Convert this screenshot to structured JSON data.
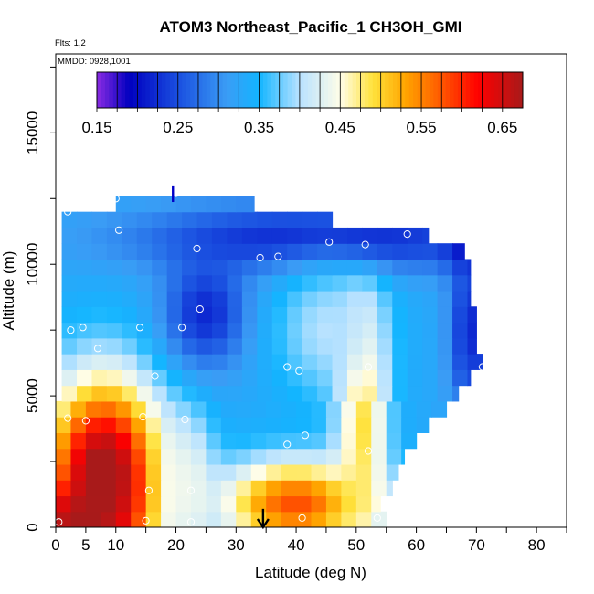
{
  "chart_data": {
    "type": "heatmap",
    "title": "ATOM3 Northeast_Pacific_1 CH3OH_GMI",
    "annotations": [
      "Flts: 1,2",
      "MMDD: 0928,1001"
    ],
    "xlabel": "Latitude (deg N)",
    "ylabel": "Altitude (m)",
    "xlim": [
      0,
      85
    ],
    "ylim": [
      0,
      18000
    ],
    "x_ticks": [
      0,
      5,
      10,
      20,
      30,
      40,
      50,
      60,
      70,
      80
    ],
    "x_tick_labels": [
      "0",
      "5",
      "10",
      "20",
      "30",
      "40",
      "50",
      "60",
      "70",
      "80"
    ],
    "y_ticks": [
      0,
      5000,
      10000,
      15000
    ],
    "y_tick_labels": [
      "0",
      "5000",
      "10000",
      "15000"
    ],
    "colorbar": {
      "min": 0.15,
      "max": 0.675,
      "labels": [
        "0.15",
        "0.25",
        "0.35",
        "0.45",
        "0.55",
        "0.65"
      ],
      "label_values": [
        0.15,
        0.25,
        0.35,
        0.45,
        0.55,
        0.65
      ],
      "stops": [
        {
          "v": 0.15,
          "c": "#8a2be2"
        },
        {
          "v": 0.19,
          "c": "#0000c0"
        },
        {
          "v": 0.25,
          "c": "#1a4fe0"
        },
        {
          "v": 0.31,
          "c": "#3a9cf5"
        },
        {
          "v": 0.35,
          "c": "#13b5ff"
        },
        {
          "v": 0.4,
          "c": "#b8e2ff"
        },
        {
          "v": 0.45,
          "c": "#fffde8"
        },
        {
          "v": 0.49,
          "c": "#ffe23c"
        },
        {
          "v": 0.53,
          "c": "#ffa500"
        },
        {
          "v": 0.57,
          "c": "#ff6000"
        },
        {
          "v": 0.62,
          "c": "#ff0000"
        },
        {
          "v": 0.675,
          "c": "#a81a1a"
        }
      ]
    },
    "grid_step": {
      "dx": 2.5,
      "dy": 600
    },
    "data_range": {
      "xmin": 0,
      "xmax": 72
    },
    "row_extents": [
      {
        "ymin": 0,
        "ymax": 600,
        "xmin": 0,
        "xmax": 55
      },
      {
        "ymin": 600,
        "ymax": 1200,
        "xmin": 0,
        "xmax": 54
      },
      {
        "ymin": 1200,
        "ymax": 1800,
        "xmin": 0,
        "xmax": 56
      },
      {
        "ymin": 1800,
        "ymax": 2400,
        "xmin": 0,
        "xmax": 57
      },
      {
        "ymin": 2400,
        "ymax": 3000,
        "xmin": 0,
        "xmax": 58
      },
      {
        "ymin": 3000,
        "ymax": 3600,
        "xmin": 0,
        "xmax": 60
      },
      {
        "ymin": 3600,
        "ymax": 4200,
        "xmin": 0,
        "xmax": 62
      },
      {
        "ymin": 4200,
        "ymax": 4800,
        "xmin": 0,
        "xmax": 65
      },
      {
        "ymin": 4800,
        "ymax": 5400,
        "xmin": 1,
        "xmax": 67
      },
      {
        "ymin": 5400,
        "ymax": 6000,
        "xmin": 1,
        "xmax": 69
      },
      {
        "ymin": 6000,
        "ymax": 6600,
        "xmin": 1,
        "xmax": 71
      },
      {
        "ymin": 6600,
        "ymax": 7200,
        "xmin": 1,
        "xmax": 70
      },
      {
        "ymin": 7200,
        "ymax": 7800,
        "xmin": 1,
        "xmax": 70
      },
      {
        "ymin": 7800,
        "ymax": 8400,
        "xmin": 1,
        "xmax": 70
      },
      {
        "ymin": 8400,
        "ymax": 9000,
        "xmin": 1,
        "xmax": 69
      },
      {
        "ymin": 9000,
        "ymax": 9600,
        "xmin": 1,
        "xmax": 69
      },
      {
        "ymin": 9600,
        "ymax": 10200,
        "xmin": 1,
        "xmax": 69
      },
      {
        "ymin": 10200,
        "ymax": 10800,
        "xmin": 1,
        "xmax": 68
      },
      {
        "ymin": 10800,
        "ymax": 11400,
        "xmin": 1,
        "xmax": 62
      },
      {
        "ymin": 11400,
        "ymax": 12000,
        "xmin": 1,
        "xmax": 46
      },
      {
        "ymin": 12000,
        "ymax": 12600,
        "xmin": 10,
        "xmax": 33
      }
    ],
    "field_features": [
      {
        "name": "background",
        "value": 0.33
      },
      {
        "name": "red_low_south",
        "value": 0.7,
        "cx": 8,
        "cy": 2000,
        "sx": 7,
        "sy": 2600
      },
      {
        "name": "red_surface",
        "value": 0.68,
        "cx": 4,
        "cy": 300,
        "sx": 6,
        "sy": 900
      },
      {
        "name": "orange_low_mid",
        "value": 0.58,
        "cx": 40,
        "cy": 900,
        "sx": 9,
        "sy": 1200
      },
      {
        "name": "yellow_column",
        "value": 0.5,
        "cx": 51,
        "cy": 4500,
        "sx": 3,
        "sy": 3500
      },
      {
        "name": "white_transition",
        "value": 0.44,
        "cx": 22,
        "cy": 1500,
        "sx": 3,
        "sy": 2000
      },
      {
        "name": "blue_upper_band",
        "value": 0.21,
        "cx": 45,
        "cy": 11000,
        "sx": 22,
        "sy": 900
      },
      {
        "name": "blue_diag",
        "value": 0.22,
        "cx": 25,
        "cy": 8200,
        "sx": 5,
        "sy": 1500
      },
      {
        "name": "violet_tip",
        "value": 0.16,
        "cx": 70,
        "cy": 10700,
        "sx": 3,
        "sy": 600
      },
      {
        "name": "blue_right_edge",
        "value": 0.22,
        "cx": 69,
        "cy": 7500,
        "sx": 2.5,
        "sy": 2500
      },
      {
        "name": "white_mid",
        "value": 0.4,
        "cx": 45,
        "cy": 7500,
        "sx": 6,
        "sy": 1800
      }
    ],
    "sample_points": [
      {
        "x": 10,
        "y": 12500
      },
      {
        "x": 20,
        "y": 12700
      },
      {
        "x": 2,
        "y": 12000
      },
      {
        "x": 10.5,
        "y": 11300
      },
      {
        "x": 23.5,
        "y": 10600
      },
      {
        "x": 34,
        "y": 10250
      },
      {
        "x": 37,
        "y": 10300
      },
      {
        "x": 45.5,
        "y": 10850
      },
      {
        "x": 51.5,
        "y": 10750
      },
      {
        "x": 58.5,
        "y": 11150
      },
      {
        "x": 69,
        "y": 10900
      },
      {
        "x": 24,
        "y": 8300
      },
      {
        "x": 4.5,
        "y": 7600
      },
      {
        "x": 2.5,
        "y": 7500
      },
      {
        "x": 14,
        "y": 7600
      },
      {
        "x": 21,
        "y": 7600
      },
      {
        "x": 7,
        "y": 6800
      },
      {
        "x": 38.5,
        "y": 6100
      },
      {
        "x": 40.5,
        "y": 5950
      },
      {
        "x": 52,
        "y": 6100
      },
      {
        "x": 71,
        "y": 6100
      },
      {
        "x": 16.5,
        "y": 5750
      },
      {
        "x": 2,
        "y": 4150
      },
      {
        "x": 5,
        "y": 4050
      },
      {
        "x": 14.5,
        "y": 4200
      },
      {
        "x": 21.5,
        "y": 4100
      },
      {
        "x": 41.5,
        "y": 3500
      },
      {
        "x": 38.5,
        "y": 3150
      },
      {
        "x": 52,
        "y": 2900
      },
      {
        "x": 15.5,
        "y": 1400
      },
      {
        "x": 22.5,
        "y": 1400
      },
      {
        "x": 15,
        "y": 250
      },
      {
        "x": 22.5,
        "y": 200
      },
      {
        "x": 41,
        "y": 350
      },
      {
        "x": 53.5,
        "y": 350
      },
      {
        "x": 0.5,
        "y": 200
      }
    ],
    "markers": [
      {
        "name": "arrow-down",
        "x": 34.5,
        "y_top": 700,
        "y_bottom": 0
      },
      {
        "name": "arrow-top",
        "x": 19.5,
        "y_top": 13000,
        "y_bottom": 12300
      }
    ]
  }
}
